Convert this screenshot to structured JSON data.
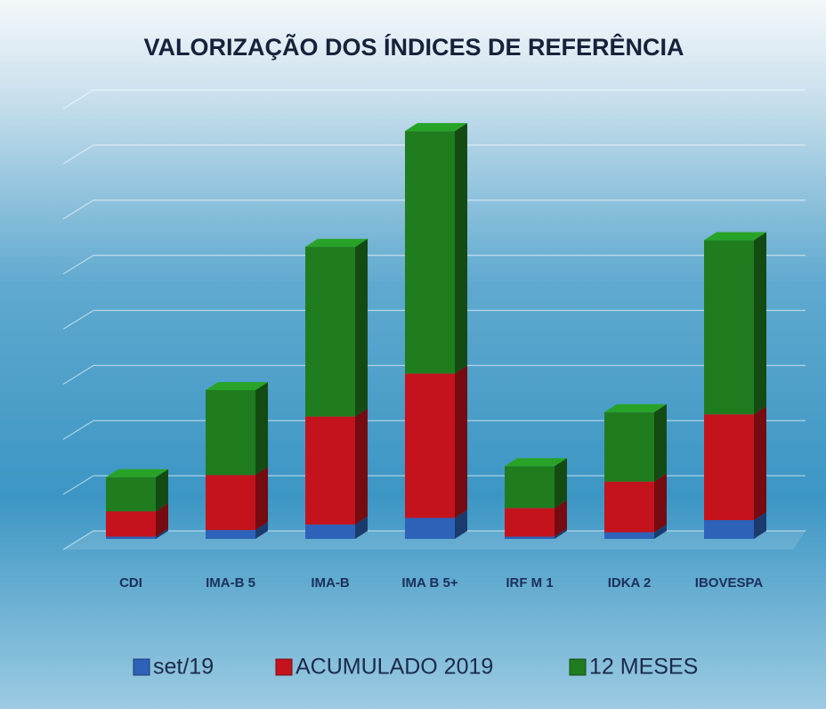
{
  "chart_data": {
    "type": "bar3d_stacked",
    "title": "VALORIZAÇÃO DOS ÍNDICES DE REFERÊNCIA",
    "categories": [
      "CDI",
      "IMA-B 5",
      "IMA-B",
      "IMA B 5+",
      "IRF M 1",
      "IDKA 2",
      "IBOVESPA"
    ],
    "series": [
      {
        "name": "set/19",
        "color": "#2d62b8",
        "values": [
          0.2,
          0.8,
          1.3,
          1.9,
          0.2,
          0.6,
          1.7
        ]
      },
      {
        "name": "ACUMULADO 2019",
        "color": "#c4131d",
        "values": [
          2.3,
          5.0,
          9.8,
          13.1,
          2.6,
          4.6,
          9.6
        ]
      },
      {
        "name": "12 MESES",
        "color": "#1f7d1f",
        "values": [
          3.1,
          7.7,
          15.4,
          22.0,
          3.8,
          6.3,
          15.8
        ]
      }
    ],
    "ylim": [
      0,
      40
    ],
    "yticks": [
      0,
      5,
      10,
      15,
      20,
      25,
      30,
      35,
      40
    ],
    "grid": true,
    "legend": "bottom"
  }
}
